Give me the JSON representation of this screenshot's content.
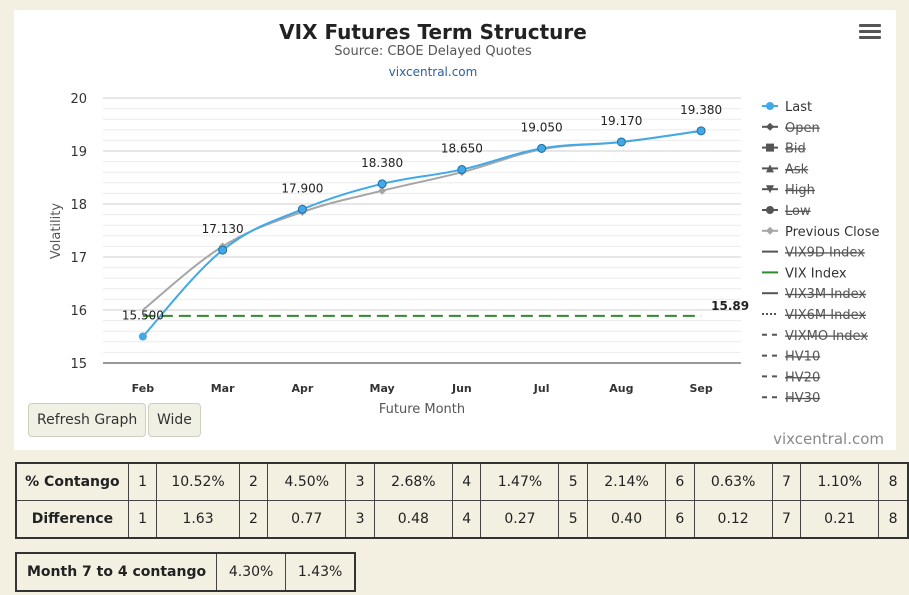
{
  "chart_data": {
    "type": "line",
    "title": "VIX Futures Term Structure",
    "subtitle": "Source: CBOE Delayed Quotes",
    "source_link": "vixcentral.com",
    "xlabel": "Future Month",
    "ylabel": "Volatility",
    "categories": [
      "Feb",
      "Mar",
      "Apr",
      "May",
      "Jun",
      "Jul",
      "Aug",
      "Sep"
    ],
    "ylim": [
      15,
      20
    ],
    "yticks": [
      "15",
      "16",
      "17",
      "18",
      "19",
      "20"
    ],
    "grid": true,
    "legend_position": "right",
    "series": [
      {
        "name": "Last",
        "color": "#41a9e8",
        "values": [
          15.5,
          17.13,
          17.9,
          18.38,
          18.65,
          19.05,
          19.17,
          19.38
        ],
        "labels": [
          "15.500",
          "17.130",
          "17.900",
          "18.380",
          "18.650",
          "19.050",
          "19.170",
          "19.380"
        ]
      },
      {
        "name": "Previous Close",
        "color": "#a6a6a6",
        "values": [
          16.0,
          17.2,
          17.85,
          18.25,
          18.6,
          19.03,
          19.17,
          19.38
        ]
      },
      {
        "name": "VIX Index",
        "color": "#2e8b2e",
        "value": 15.89,
        "label": "15.89"
      }
    ],
    "legend": [
      {
        "label": "Last",
        "symbol": "circle",
        "color": "#41a9e8",
        "disabled": false
      },
      {
        "label": "Open",
        "symbol": "diamond",
        "color": "#555555",
        "disabled": true
      },
      {
        "label": "Bid",
        "symbol": "square",
        "color": "#555555",
        "disabled": true
      },
      {
        "label": "Ask",
        "symbol": "triangle",
        "color": "#555555",
        "disabled": true
      },
      {
        "label": "High",
        "symbol": "triangle-down",
        "color": "#555555",
        "disabled": true
      },
      {
        "label": "Low",
        "symbol": "circle",
        "color": "#555555",
        "disabled": true
      },
      {
        "label": "Previous Close",
        "symbol": "diamond",
        "color": "#a6a6a6",
        "disabled": false
      },
      {
        "label": "VIX9D Index",
        "symbol": "line",
        "color": "#555555",
        "disabled": true
      },
      {
        "label": "VIX Index",
        "symbol": "line",
        "color": "#2e8b2e",
        "disabled": false
      },
      {
        "label": "VIX3M Index",
        "symbol": "line",
        "color": "#555555",
        "disabled": true
      },
      {
        "label": "VIX6M Index",
        "symbol": "dotted",
        "color": "#555555",
        "disabled": true
      },
      {
        "label": "VIXMO Index",
        "symbol": "dashed",
        "color": "#555555",
        "disabled": true
      },
      {
        "label": "HV10",
        "symbol": "dashed",
        "color": "#555555",
        "disabled": true
      },
      {
        "label": "HV20",
        "symbol": "dashed",
        "color": "#555555",
        "disabled": true
      },
      {
        "label": "HV30",
        "symbol": "dashed",
        "color": "#555555",
        "disabled": true
      }
    ]
  },
  "buttons": {
    "refresh": "Refresh Graph",
    "wide": "Wide"
  },
  "watermark": "vixcentral.com",
  "contango_table": {
    "rows": [
      {
        "label": "% Contango",
        "cells": [
          "1",
          "10.52%",
          "2",
          "4.50%",
          "3",
          "2.68%",
          "4",
          "1.47%",
          "5",
          "2.14%",
          "6",
          "0.63%",
          "7",
          "1.10%",
          "8"
        ]
      },
      {
        "label": "Difference",
        "cells": [
          "1",
          "1.63",
          "2",
          "0.77",
          "3",
          "0.48",
          "4",
          "0.27",
          "5",
          "0.40",
          "6",
          "0.12",
          "7",
          "0.21",
          "8"
        ]
      }
    ]
  },
  "month_contango": {
    "label": "Month 7 to 4 contango",
    "values": [
      "4.30%",
      "1.43%"
    ]
  }
}
